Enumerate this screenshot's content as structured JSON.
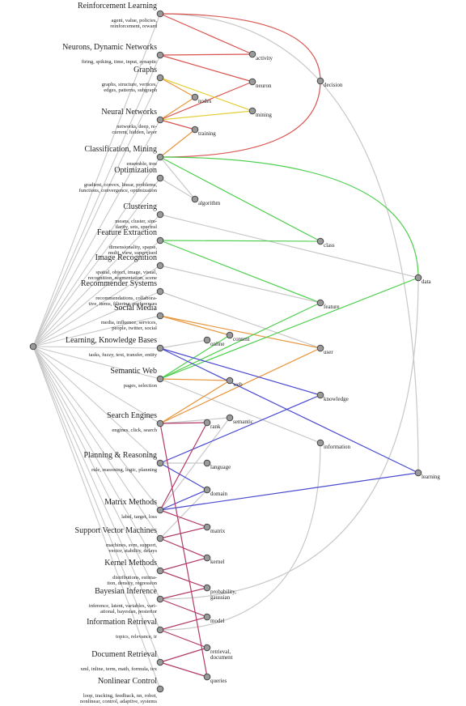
{
  "topics": [
    {
      "title": "Reinforcement Learning",
      "keywords": [
        "agent, value, policies,",
        "reinforcement, reward"
      ]
    },
    {
      "title": "Neurons, Dynamic Networks",
      "keywords": [
        "firing, spiking, time, input, synaptic"
      ]
    },
    {
      "title": "Graphs",
      "keywords": [
        "graphs, structure, vertices,",
        "edges, patterns, subgraph"
      ]
    },
    {
      "title": "Neural Networks",
      "keywords": [
        "networks, deep, re-",
        "current, hidden, layer"
      ]
    },
    {
      "title": "Classification, Mining",
      "keywords": [
        "ensemble, tree"
      ]
    },
    {
      "title": "Optimization",
      "keywords": [
        "gradient, convex, linear, problems,",
        "functions, convergence, optimization"
      ]
    },
    {
      "title": "Clustering",
      "keywords": [
        "means, cluster, sim-",
        "ilarity, sets, spectral"
      ]
    },
    {
      "title": "Feature Extraction",
      "keywords": [
        "dimensionality, sparse,",
        "multi, view, supervised"
      ]
    },
    {
      "title": "Image Recognition",
      "keywords": [
        "spatial, object, image, visual,",
        "recognition, segmentation, scene"
      ]
    },
    {
      "title": "Recommender Systems",
      "keywords": [
        "recommendations, collabora-",
        "tive, items, filtering, preferences"
      ]
    },
    {
      "title": "Social Media",
      "keywords": [
        "media, influence, services,",
        "people, twitter, social"
      ]
    },
    {
      "title": "Learning, Knowledge Bases",
      "keywords": [
        "tasks, fuzzy, text, transfer, entity"
      ]
    },
    {
      "title": "Semantic Web",
      "keywords": [
        "pages, selection"
      ]
    },
    {
      "title": "Search Engines",
      "keywords": [
        "engines, click, search"
      ]
    },
    {
      "title": "Planning & Reasoning",
      "keywords": [
        "rule, reasoning, logic, planning"
      ]
    },
    {
      "title": "Matrix Methods",
      "keywords": [
        "label, target, loss"
      ]
    },
    {
      "title": "Support Vector Machines",
      "keywords": [
        "machines, svm, support,",
        "vector, stability, delays"
      ]
    },
    {
      "title": "Kernel Methods",
      "keywords": [
        "distributions, estima-",
        "tion, density, regression"
      ]
    },
    {
      "title": "Bayesian Inference",
      "keywords": [
        "inference, latent, variables, vari-",
        "ational, bayesian, posterior"
      ]
    },
    {
      "title": "Information Retrieval",
      "keywords": [
        "topics, relevance, ir"
      ]
    },
    {
      "title": "Document Retrieval",
      "keywords": [
        "xml, inline, term, math, formula, tex"
      ]
    },
    {
      "title": "Nonlinear Control",
      "keywords": [
        "loop, tracking, feedback, nn, robot,",
        "nonlinear, control, adaptive, systems"
      ]
    }
  ],
  "terms": [
    {
      "label": [
        "activity"
      ]
    },
    {
      "label": [
        "neuron"
      ]
    },
    {
      "label": [
        "nodes"
      ]
    },
    {
      "label": [
        "mining"
      ]
    },
    {
      "label": [
        "training"
      ]
    },
    {
      "label": [
        "decision"
      ]
    },
    {
      "label": [
        "algorithm"
      ]
    },
    {
      "label": [
        "class"
      ]
    },
    {
      "label": [
        "data"
      ]
    },
    {
      "label": [
        "feature"
      ]
    },
    {
      "label": [
        "content"
      ]
    },
    {
      "label": [
        "online"
      ]
    },
    {
      "label": [
        "user"
      ]
    },
    {
      "label": [
        "knowledge"
      ]
    },
    {
      "label": [
        "web"
      ]
    },
    {
      "label": [
        "semantic"
      ]
    },
    {
      "label": [
        "rank"
      ]
    },
    {
      "label": [
        "information"
      ]
    },
    {
      "label": [
        "language"
      ]
    },
    {
      "label": [
        "domain"
      ]
    },
    {
      "label": [
        "learning"
      ]
    },
    {
      "label": [
        "matrix"
      ]
    },
    {
      "label": [
        "kernel"
      ]
    },
    {
      "label": [
        "probability,",
        "gaussian"
      ]
    },
    {
      "label": [
        "model"
      ]
    },
    {
      "label": [
        "retrieval,",
        "document"
      ]
    },
    {
      "label": [
        "queries"
      ]
    }
  ]
}
